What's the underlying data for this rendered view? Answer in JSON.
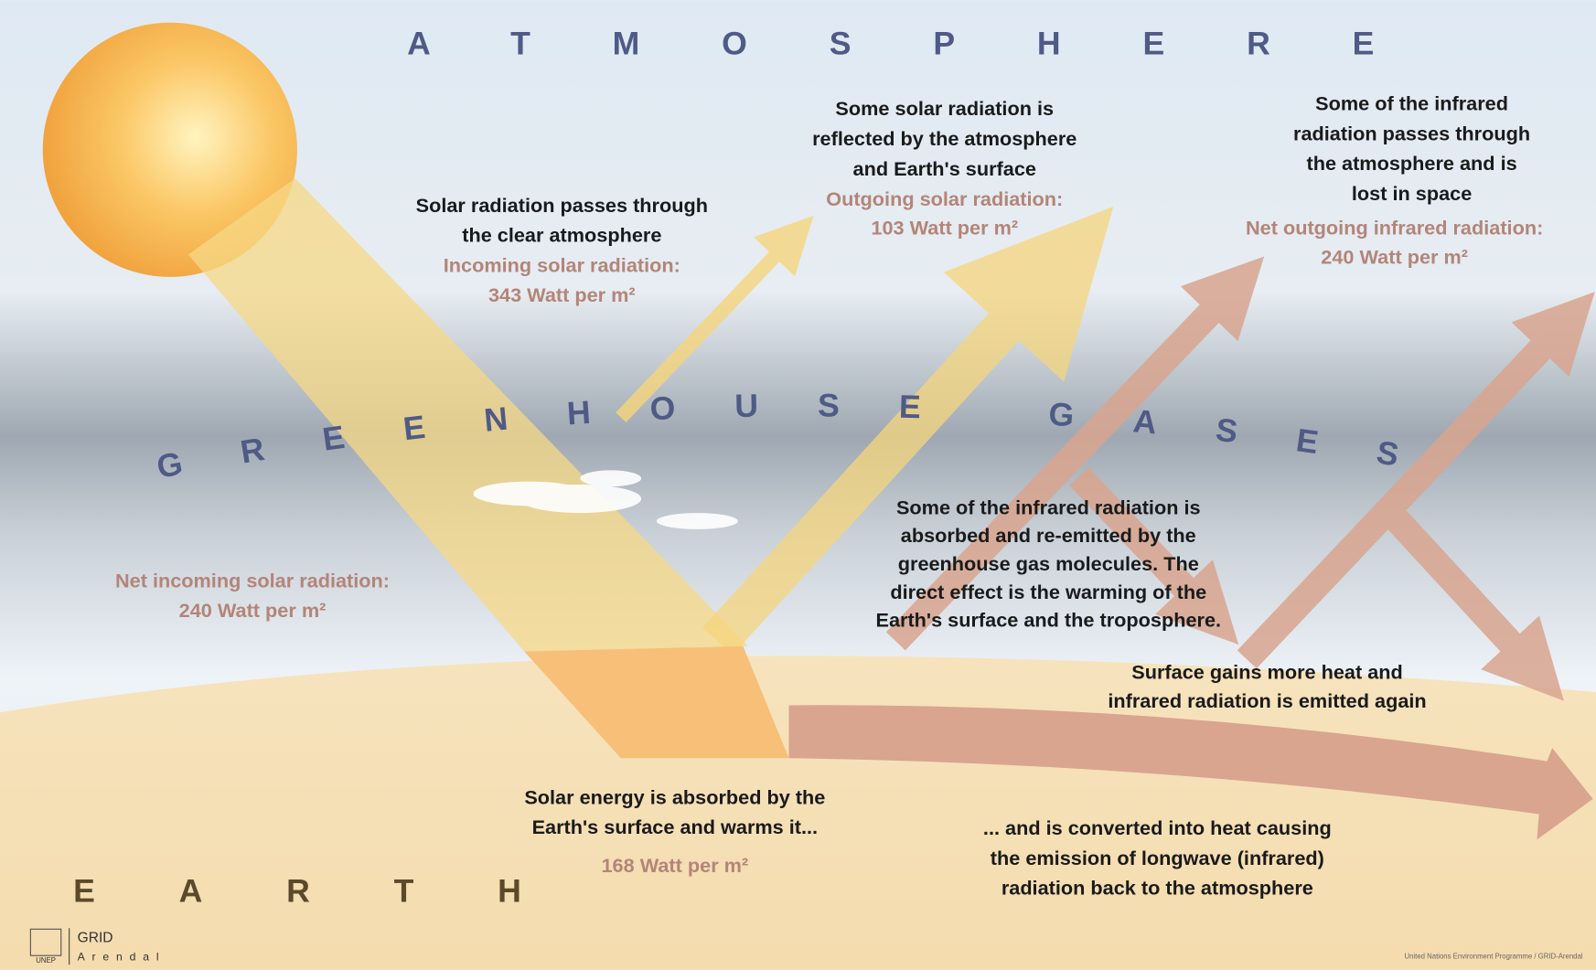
{
  "titles": {
    "atmosphere": "ATMOSPHERE",
    "greenhouse": "GREENHOUSE GASES",
    "earth": "EARTH"
  },
  "labels": [
    {
      "lines": [
        "Solar radiation passes through",
        "the clear atmosphere"
      ],
      "value_lines": [
        "Incoming solar radiation:",
        "343 Watt per m²"
      ]
    },
    {
      "lines": [
        "Some solar radiation is",
        "reflected by the atmosphere",
        "and Earth's surface"
      ],
      "value_lines": [
        "Outgoing solar radiation:",
        "103 Watt per m²"
      ]
    },
    {
      "lines": [
        "Some of the infrared",
        "radiation passes through",
        "the atmosphere and is",
        "lost in space"
      ],
      "value_lines": [
        "Net outgoing infrared radiation:",
        "240 Watt per m²"
      ]
    },
    {
      "lines": [],
      "value_lines": [
        "Net incoming solar radiation:",
        "240 Watt per m²"
      ]
    },
    {
      "lines": [
        "Some of the infrared radiation is",
        "absorbed and re-emitted by the",
        "greenhouse gas molecules. The",
        "direct effect is the warming of the",
        "Earth's surface and the troposphere."
      ],
      "value_lines": []
    },
    {
      "lines": [
        "Surface gains more heat and",
        "infrared radiation is emitted again"
      ],
      "value_lines": []
    },
    {
      "lines": [
        "Solar energy is absorbed by the",
        "Earth's surface and warms it..."
      ],
      "value_lines": [
        "168 Watt per m²"
      ]
    },
    {
      "lines": [
        "... and is converted into heat causing",
        "the emission of longwave (infrared)",
        "radiation back to the atmosphere"
      ],
      "value_lines": []
    }
  ],
  "footer": {
    "logo_top": "GRID",
    "logo_bottom": "Arendal",
    "logo_small": "UNEP",
    "credit": "United Nations Environment Programme / GRID-Arendal"
  }
}
